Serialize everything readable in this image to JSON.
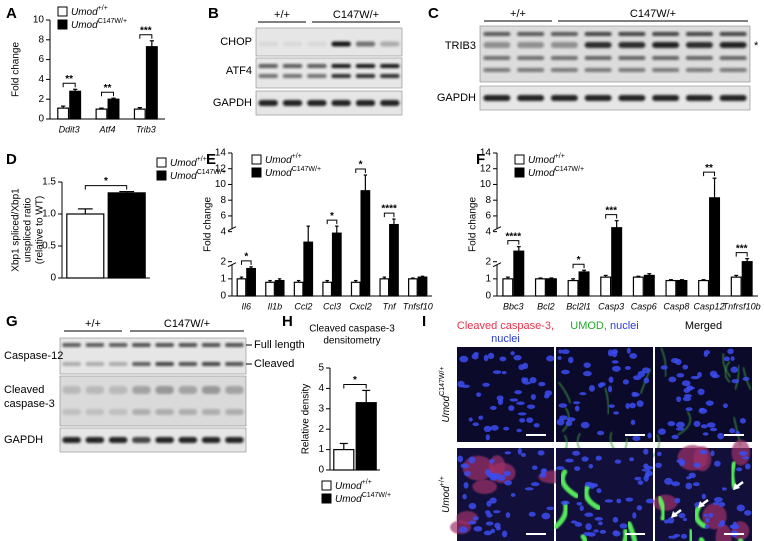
{
  "chart_data": [
    {
      "panel": "A",
      "type": "bar",
      "ylabel": "Fold change",
      "categories": [
        "Ddit3",
        "Atf4",
        "Trib3"
      ],
      "series": [
        {
          "name": "Umod",
          "name_sup": "+/+",
          "color": "#ffffff",
          "values": [
            1.1,
            1.0,
            1.0
          ],
          "errors": [
            0.2,
            0.1,
            0.15
          ]
        },
        {
          "name": "Umod",
          "name_sup": "C147W/+",
          "color": "#000000",
          "values": [
            2.8,
            2.0,
            7.3
          ],
          "errors": [
            0.2,
            0.1,
            0.6
          ]
        }
      ],
      "significance": [
        "**",
        "**",
        "***"
      ],
      "ylim": [
        0,
        10
      ],
      "yticks": [
        0,
        2,
        4,
        6,
        8,
        10
      ]
    },
    {
      "panel": "D",
      "type": "bar",
      "ylabel": [
        "Xbp1 spliced/Xbp1",
        "unspliced ratio",
        "(relative to WT)"
      ],
      "categories": [
        null
      ],
      "series": [
        {
          "name": "Umod",
          "name_sup": "+/+",
          "color": "#ffffff",
          "values": [
            1.0
          ],
          "errors": [
            0.08
          ]
        },
        {
          "name": "Umod",
          "name_sup": "C147W/+",
          "color": "#000000",
          "values": [
            1.33
          ],
          "errors": [
            0.02
          ]
        }
      ],
      "significance": [
        "*"
      ],
      "ylim": [
        0,
        1.5
      ],
      "yticks": [
        0,
        0.5,
        {
          "value": 1,
          "label": "1.0"
        },
        1.5
      ]
    },
    {
      "panel": "E",
      "type": "bar",
      "ylabel": "Fold change",
      "categories": [
        "Il6",
        "Il1b",
        "Ccl2",
        "Ccl3",
        "Cxcl2",
        "Tnf",
        "Tnfsf10"
      ],
      "series": [
        {
          "name": "Umod",
          "name_sup": "+/+",
          "color": "#ffffff",
          "values": [
            1.0,
            0.8,
            0.8,
            0.8,
            0.8,
            1.0,
            1.0
          ],
          "errors": [
            0.1,
            0.1,
            0.1,
            0.1,
            0.1,
            0.1,
            0.05
          ]
        },
        {
          "name": "Umod",
          "name_sup": "C147W/+",
          "color": "#000000",
          "values": [
            1.6,
            0.9,
            3.3,
            3.9,
            9.2,
            4.9,
            1.1
          ],
          "errors": [
            0.1,
            0.1,
            1.4,
            0.8,
            2.0,
            0.7,
            0.05
          ]
        }
      ],
      "significance": [
        "*",
        null,
        null,
        "*",
        "*",
        "****",
        null
      ],
      "ylim": [
        0,
        14
      ],
      "ybreak": [
        2,
        4
      ],
      "yticks": [
        0,
        1,
        2,
        4,
        6,
        8,
        10,
        12,
        14
      ]
    },
    {
      "panel": "F",
      "type": "bar",
      "ylabel": "Fold change",
      "categories": [
        "Bbc3",
        "Bcl2",
        "Bcl2l1",
        "Casp3",
        "Casp6",
        "Casp8",
        "Casp12",
        "Tnfrsf10b"
      ],
      "series": [
        {
          "name": "Umod",
          "name_sup": "+/+",
          "color": "#ffffff",
          "values": [
            1.0,
            1.0,
            0.9,
            1.1,
            1.1,
            0.9,
            0.9,
            1.1
          ],
          "errors": [
            0.1,
            0.05,
            0.1,
            0.1,
            0.05,
            0.05,
            0.05,
            0.1
          ]
        },
        {
          "name": "Umod",
          "name_sup": "C147W/+",
          "color": "#000000",
          "values": [
            2.7,
            1.0,
            1.4,
            4.5,
            1.2,
            0.9,
            8.3,
            2.0
          ],
          "errors": [
            0.3,
            0.05,
            0.1,
            0.9,
            0.1,
            0.05,
            2.5,
            0.2
          ]
        }
      ],
      "significance": [
        "****",
        null,
        "*",
        "***",
        null,
        null,
        "**",
        "***"
      ],
      "ylim": [
        0,
        14
      ],
      "ybreak": [
        2,
        4
      ],
      "yticks": [
        0,
        1,
        2,
        4,
        6,
        8,
        10,
        12,
        14
      ]
    },
    {
      "panel": "H",
      "type": "bar",
      "title": [
        "Cleaved caspase-3",
        "densitometry"
      ],
      "ylabel": "Relative density",
      "categories": [
        null
      ],
      "series": [
        {
          "name": "Umod",
          "name_sup": "+/+",
          "color": "#ffffff",
          "values": [
            1.0
          ],
          "errors": [
            0.3
          ]
        },
        {
          "name": "Umod",
          "name_sup": "C147W/+",
          "color": "#000000",
          "values": [
            3.3
          ],
          "errors": [
            0.6
          ]
        }
      ],
      "significance": [
        "*"
      ],
      "ylim": [
        0,
        5
      ],
      "yticks": [
        0,
        1,
        2,
        3,
        4,
        5
      ]
    }
  ],
  "blots": {
    "B": {
      "panel": "B",
      "groups": [
        "+/+",
        "C147W/+"
      ],
      "rows": [
        "CHOP",
        "ATF4",
        "GAPDH"
      ]
    },
    "C": {
      "panel": "C",
      "groups": [
        "+/+",
        "C147W/+"
      ],
      "rows": [
        "TRIB3",
        "GAPDH"
      ],
      "marker": "*"
    },
    "G": {
      "panel": "G",
      "groups": [
        "+/+",
        "C147W/+"
      ],
      "rows": [
        [
          "Caspase-12"
        ],
        [
          "Cleaved",
          "caspase-3"
        ],
        [
          "GAPDH"
        ]
      ],
      "bands": [
        "Full length",
        "Cleaved"
      ]
    }
  },
  "images": {
    "panel": "I",
    "columns": [
      [
        "Cleaved caspase-3,",
        "nuclei"
      ],
      [
        "UMOD,",
        "nuclei"
      ],
      [
        "Merged"
      ]
    ],
    "rows": [
      {
        "name": "Umod",
        "sup": "C147W/+"
      },
      {
        "name": "Umod",
        "sup": "+/+"
      }
    ]
  }
}
